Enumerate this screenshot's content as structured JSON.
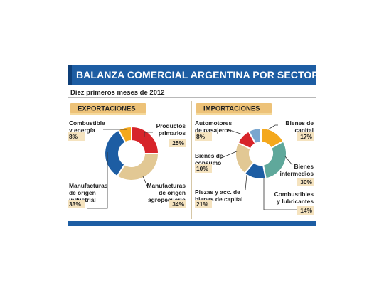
{
  "title": "BALANZA COMERCIAL ARGENTINA POR SECTOR",
  "subtitle": "Diez primeros meses de 2012",
  "colors": {
    "header": "#1d5da3",
    "tab": "#edc278",
    "pct_box": "#f5e3bf"
  },
  "chart_data": [
    {
      "type": "pie",
      "donut": true,
      "title": "EXPORTACIONES",
      "slices": [
        {
          "label": "Productos primarios",
          "label_lines": [
            "Productos",
            "primarios"
          ],
          "pct_label": "25%",
          "value": 25,
          "color": "#d7242a"
        },
        {
          "label": "Manufacturas de origen agropecuario",
          "label_lines": [
            "Manufacturas",
            "de origen",
            "agropecuario"
          ],
          "pct_label": "34%",
          "value": 34,
          "color": "#e2c894"
        },
        {
          "label": "Manufacturas de origen industrial",
          "label_lines": [
            "Manufacturas",
            "de origen",
            "industrial"
          ],
          "pct_label": "33%",
          "value": 33,
          "color": "#1d5da3"
        },
        {
          "label": "Combustible y energía",
          "label_lines": [
            "Combustible",
            "y energía"
          ],
          "pct_label": "8%",
          "value": 8,
          "color": "#f4a81d"
        }
      ]
    },
    {
      "type": "pie",
      "donut": true,
      "title": "IMPORTACIONES",
      "slices": [
        {
          "label": "Bienes de capital",
          "label_lines": [
            "Bienes de",
            "capital"
          ],
          "pct_label": "17%",
          "value": 17,
          "color": "#f4a81d"
        },
        {
          "label": "Bienes intermedios",
          "label_lines": [
            "Bienes",
            "intermedios"
          ],
          "pct_label": "30%",
          "value": 30,
          "color": "#5fa89b"
        },
        {
          "label": "Combustibles y lubricantes",
          "label_lines": [
            "Combustibles",
            "y lubricantes"
          ],
          "pct_label": "14%",
          "value": 14,
          "color": "#1d5da3"
        },
        {
          "label": "Piezas y acc. de bienes de capital",
          "label_lines": [
            "Piezas y acc. de",
            "bienes de capital"
          ],
          "pct_label": "21%",
          "value": 21,
          "color": "#e2c894"
        },
        {
          "label": "Bienes de consumo",
          "label_lines": [
            "Bienes de",
            "consumo"
          ],
          "pct_label": "10%",
          "value": 10,
          "color": "#d7242a"
        },
        {
          "label": "Automotores de pasajeros",
          "label_lines": [
            "Automotores",
            "de pasajeros"
          ],
          "pct_label": "8%",
          "value": 8,
          "color": "#7aa6cf"
        }
      ]
    }
  ]
}
